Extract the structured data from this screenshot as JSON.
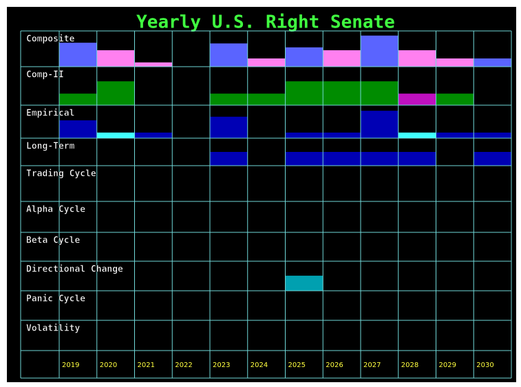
{
  "title": "Yearly U.S. Right Senate",
  "years": [
    "2019",
    "2020",
    "2021",
    "2022",
    "2023",
    "2024",
    "2025",
    "2026",
    "2027",
    "2028",
    "2029",
    "2030"
  ],
  "rows": [
    {
      "label": "Composite",
      "values": [
        0.67,
        0.46,
        0.12,
        0,
        0.65,
        0.23,
        0.54,
        0.46,
        0.87,
        0.46,
        0.23,
        0.23
      ],
      "colors": [
        "#5a64ff",
        "#ff80f0",
        "#ff80f0",
        "#ff80f0",
        "#5a64ff",
        "#ff80f0",
        "#5a64ff",
        "#ff80f0",
        "#5a64ff",
        "#ff80f0",
        "#ff80f0",
        "#5a64ff"
      ]
    },
    {
      "label": "Comp-II",
      "values": [
        0.3,
        0.62,
        0,
        0,
        0.3,
        0.3,
        0.62,
        0.62,
        0.62,
        0.3,
        0.3,
        0
      ],
      "colors": [
        "#008c00",
        "#008c00",
        "#008c00",
        "#008c00",
        "#008c00",
        "#008c00",
        "#008c00",
        "#008c00",
        "#008c00",
        "#c010c0",
        "#008c00",
        "#008c00"
      ]
    },
    {
      "label": "Empirical",
      "values": [
        0.54,
        0.17,
        0.17,
        0,
        0.65,
        0,
        0.17,
        0.17,
        0.83,
        0.17,
        0.17,
        0.17
      ],
      "colors": [
        "#0000b4",
        "#40ffff",
        "#0000b4",
        "#0000b4",
        "#0000b4",
        "#0000b4",
        "#0000b4",
        "#0000b4",
        "#0000b4",
        "#40ffff",
        "#0000b4",
        "#0000b4"
      ]
    },
    {
      "label": "Long-Term",
      "values": [
        0,
        0,
        0,
        0,
        0.5,
        0,
        0.5,
        0.5,
        0.5,
        0.5,
        0,
        0.5
      ],
      "colors": [
        "#0000b4",
        "#0000b4",
        "#0000b4",
        "#0000b4",
        "#0000b4",
        "#0000b4",
        "#0000b4",
        "#0000b4",
        "#0000b4",
        "#0000b4",
        "#0000b4",
        "#0000b4"
      ]
    },
    {
      "label": "Trading Cycle"
    },
    {
      "label": "Alpha Cycle"
    },
    {
      "label": "Beta Cycle"
    },
    {
      "label": "Directional Change",
      "values": [
        0,
        0,
        0,
        0,
        0,
        0,
        0.51,
        0,
        0,
        0,
        0,
        0
      ],
      "colors": [
        "#00a0b0",
        "#00a0b0",
        "#00a0b0",
        "#00a0b0",
        "#00a0b0",
        "#00a0b0",
        "#00a0b0",
        "#00a0b0",
        "#00a0b0",
        "#00a0b0",
        "#00a0b0",
        "#00a0b0"
      ]
    },
    {
      "label": "Panic Cycle"
    },
    {
      "label": "Volatility"
    }
  ]
}
